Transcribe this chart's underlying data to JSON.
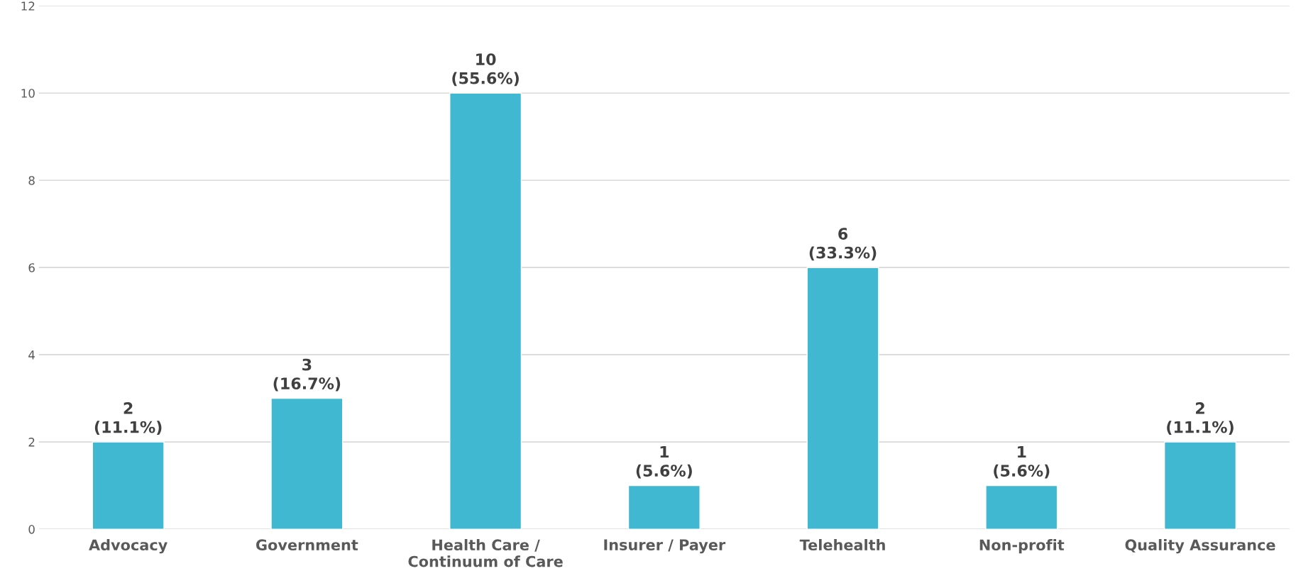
{
  "chart_data": {
    "type": "bar",
    "categories": [
      "Advocacy",
      "Government",
      "Health Care /\nContinuum of Care",
      "Insurer / Payer",
      "Telehealth",
      "Non-profit",
      "Quality Assurance"
    ],
    "values": [
      2,
      3,
      10,
      1,
      6,
      1,
      2
    ],
    "color": "#41b8d2",
    "value_labels": [
      "2\n(11.1%)",
      "3\n(16.7%)",
      "10\n(55.6%)",
      "1\n(5.6%)",
      "6\n(33.3%)",
      "1\n(5.6%)",
      "2\n(11.1%)"
    ],
    "ylim": [
      0,
      12
    ],
    "yticks": [
      0,
      2,
      4,
      6,
      8,
      10,
      12
    ],
    "grid": "y"
  }
}
